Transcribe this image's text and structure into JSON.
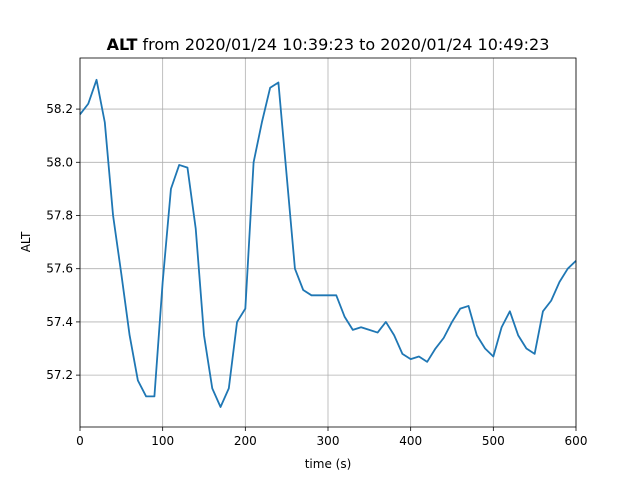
{
  "chart_data": {
    "type": "line",
    "title": [
      "ALT",
      "from 2020/01/24 10:39:23 to 2020/01/24 10:49:23"
    ],
    "xlabel": "time (s)",
    "ylabel": "ALT",
    "x": [
      0,
      10,
      20,
      30,
      40,
      50,
      60,
      70,
      80,
      90,
      100,
      110,
      120,
      130,
      140,
      150,
      160,
      170,
      180,
      190,
      200,
      210,
      220,
      230,
      240,
      250,
      260,
      270,
      280,
      290,
      300,
      310,
      320,
      330,
      340,
      350,
      360,
      370,
      380,
      390,
      400,
      410,
      420,
      430,
      440,
      450,
      460,
      470,
      480,
      490,
      500,
      510,
      520,
      530,
      540,
      550,
      560,
      570,
      580,
      590,
      600
    ],
    "series": [
      {
        "name": "ALT",
        "color": "#1f77b4",
        "values": [
          58.18,
          58.22,
          58.31,
          58.15,
          57.8,
          57.58,
          57.35,
          57.18,
          57.12,
          57.12,
          57.55,
          57.9,
          57.99,
          57.98,
          57.75,
          57.35,
          57.15,
          57.08,
          57.15,
          57.4,
          57.45,
          58.0,
          58.15,
          58.28,
          58.3,
          57.95,
          57.6,
          57.52,
          57.5,
          57.5,
          57.5,
          57.5,
          57.42,
          57.37,
          57.38,
          57.37,
          57.36,
          57.4,
          57.35,
          57.28,
          57.26,
          57.27,
          57.25,
          57.3,
          57.34,
          57.4,
          57.45,
          57.46,
          57.35,
          57.3,
          57.27,
          57.38,
          57.44,
          57.35,
          57.3,
          57.28,
          57.44,
          57.48,
          57.55,
          57.6,
          57.63
        ]
      }
    ],
    "xlim": [
      0,
      600
    ],
    "xticks": [
      0,
      100,
      200,
      300,
      400,
      500,
      600
    ],
    "ylim": [
      57.005,
      58.392
    ],
    "yticks": [
      57.2,
      57.4,
      57.6,
      57.8,
      {
        "value": 58,
        "label": "58.0"
      },
      58.2
    ],
    "grid": true
  }
}
